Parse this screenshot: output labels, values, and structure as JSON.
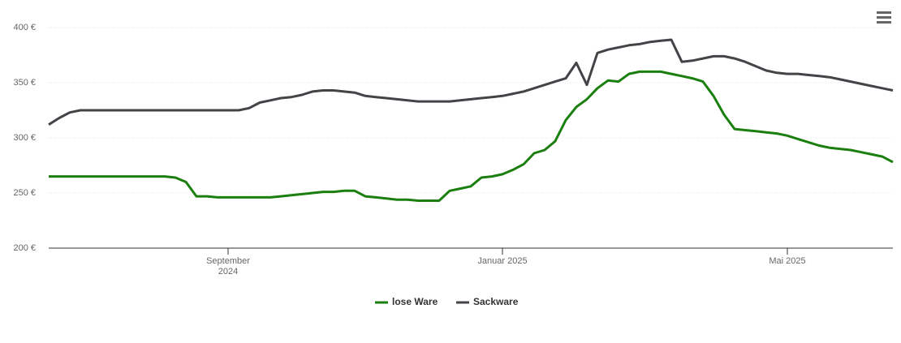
{
  "chart_data": {
    "type": "line",
    "categories": [
      null,
      null,
      null,
      null,
      null,
      null,
      null,
      null,
      null,
      null,
      null,
      null,
      null,
      null,
      null,
      null,
      null,
      "September 2024",
      null,
      null,
      null,
      null,
      null,
      null,
      null,
      null,
      null,
      null,
      null,
      null,
      null,
      null,
      null,
      null,
      null,
      null,
      null,
      null,
      null,
      null,
      null,
      null,
      null,
      "Januar 2025",
      null,
      null,
      null,
      null,
      null,
      null,
      null,
      null,
      null,
      null,
      null,
      null,
      null,
      null,
      null,
      null,
      null,
      null,
      null,
      null,
      null,
      null,
      null,
      null,
      null,
      null,
      "Mai 2025",
      null,
      null,
      null,
      null,
      null,
      null,
      null,
      null,
      null,
      null
    ],
    "series": [
      {
        "name": "lose Ware",
        "color": "#1a7f0e",
        "values": [
          265,
          265,
          265,
          265,
          265,
          265,
          265,
          265,
          265,
          265,
          265,
          265,
          264,
          260,
          247,
          247,
          246,
          246,
          246,
          246,
          246,
          246,
          247,
          248,
          249,
          250,
          251,
          251,
          252,
          252,
          247,
          246,
          245,
          244,
          244,
          243,
          243,
          243,
          252,
          254,
          256,
          264,
          265,
          267,
          271,
          276,
          286,
          289,
          297,
          316,
          328,
          335,
          345,
          352,
          351,
          358,
          360,
          360,
          360,
          358,
          356,
          354,
          351,
          338,
          321,
          308,
          307,
          306,
          305,
          304,
          302,
          299,
          296,
          293,
          291,
          290,
          289,
          287,
          285,
          283,
          278
        ]
      },
      {
        "name": "Sackware",
        "color": "#434348",
        "values": [
          312,
          318,
          323,
          325,
          325,
          325,
          325,
          325,
          325,
          325,
          325,
          325,
          325,
          325,
          325,
          325,
          325,
          325,
          325,
          327,
          332,
          334,
          336,
          337,
          339,
          342,
          343,
          343,
          342,
          341,
          338,
          337,
          336,
          335,
          334,
          333,
          333,
          333,
          333,
          334,
          335,
          336,
          337,
          338,
          340,
          342,
          345,
          348,
          351,
          354,
          368,
          348,
          377,
          380,
          382,
          384,
          385,
          387,
          388,
          389,
          369,
          370,
          372,
          374,
          374,
          372,
          369,
          365,
          361,
          359,
          358,
          358,
          357,
          356,
          355,
          353,
          351,
          349,
          347,
          345,
          343
        ]
      }
    ],
    "ylim": [
      200,
      400
    ],
    "yticks": [
      {
        "value": 200,
        "label": "200 €"
      },
      {
        "value": 250,
        "label": "250 €"
      },
      {
        "value": 300,
        "label": "300 €"
      },
      {
        "value": 350,
        "label": "350 €"
      },
      {
        "value": 400,
        "label": "400 €"
      }
    ],
    "grid": true
  }
}
